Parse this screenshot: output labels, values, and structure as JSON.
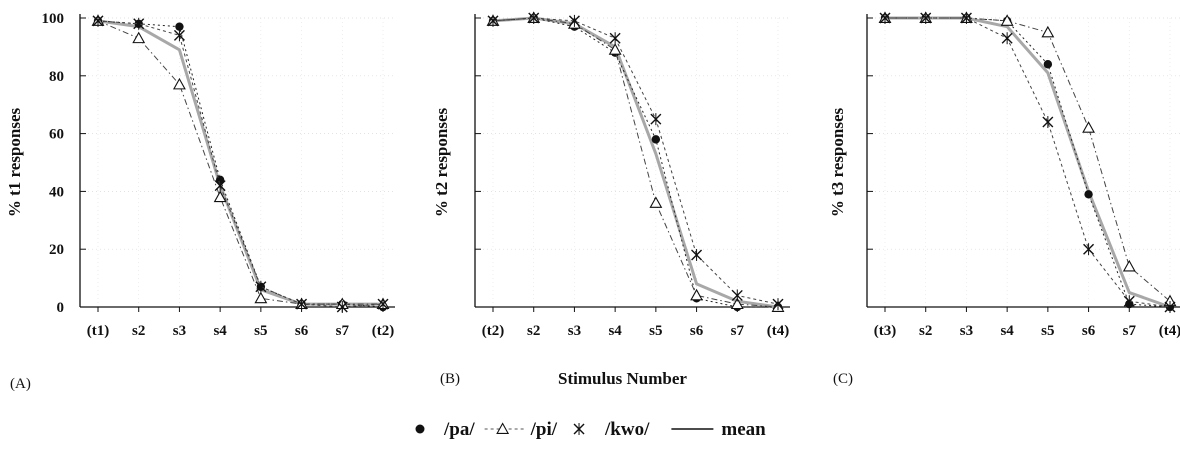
{
  "chart_data": [
    {
      "type": "line",
      "panel_label": "(A)",
      "ylabel": "% t1 responses",
      "xlabel": "",
      "categories": [
        "(t1)",
        "s2",
        "s3",
        "s4",
        "s5",
        "s6",
        "s7",
        "(t2)"
      ],
      "ylim": [
        0,
        100
      ],
      "yticks": [
        "0",
        "20",
        "40",
        "60",
        "80",
        "100"
      ],
      "series": [
        {
          "name": "/pa/",
          "marker": "dot",
          "values": [
            99,
            98,
            97,
            44,
            7,
            1,
            1,
            0
          ]
        },
        {
          "name": "/pi/",
          "marker": "triangle",
          "values": [
            99,
            93,
            77,
            38,
            3,
            1,
            1,
            1
          ]
        },
        {
          "name": "/kwo/",
          "marker": "x",
          "values": [
            99,
            98,
            94,
            42,
            7,
            1,
            0,
            1
          ]
        },
        {
          "name": "mean",
          "marker": "line",
          "values": [
            99,
            97,
            89,
            42,
            6,
            1,
            1,
            1
          ]
        }
      ]
    },
    {
      "type": "line",
      "panel_label": "(B)",
      "ylabel": "% t2 responses",
      "xlabel": "Stimulus Number",
      "categories": [
        "(t2)",
        "s2",
        "s3",
        "s4",
        "s5",
        "s6",
        "s7",
        "(t4)"
      ],
      "ylim": [
        0,
        100
      ],
      "yticks": [],
      "series": [
        {
          "name": "/pa/",
          "marker": "dot",
          "values": [
            99,
            100,
            97,
            88,
            58,
            3,
            0,
            0
          ]
        },
        {
          "name": "/pi/",
          "marker": "triangle",
          "values": [
            99,
            100,
            98,
            89,
            36,
            4,
            1,
            0
          ]
        },
        {
          "name": "/kwo/",
          "marker": "x",
          "values": [
            99,
            100,
            99,
            93,
            65,
            18,
            4,
            1
          ]
        },
        {
          "name": "mean",
          "marker": "line",
          "values": [
            99,
            100,
            98,
            90,
            53,
            8,
            2,
            0
          ]
        }
      ]
    },
    {
      "type": "line",
      "panel_label": "(C)",
      "ylabel": "% t3 responses",
      "xlabel": "",
      "categories": [
        "(t3)",
        "s2",
        "s3",
        "s4",
        "s5",
        "s6",
        "s7",
        "(t4)"
      ],
      "ylim": [
        0,
        100
      ],
      "yticks": [],
      "series": [
        {
          "name": "/pa/",
          "marker": "dot",
          "values": [
            100,
            100,
            100,
            99,
            84,
            39,
            1,
            0
          ]
        },
        {
          "name": "/pi/",
          "marker": "triangle",
          "values": [
            100,
            100,
            100,
            99,
            95,
            62,
            14,
            2
          ]
        },
        {
          "name": "/kwo/",
          "marker": "x",
          "values": [
            100,
            100,
            100,
            93,
            64,
            20,
            2,
            0
          ]
        },
        {
          "name": "mean",
          "marker": "line",
          "values": [
            100,
            100,
            100,
            97,
            81,
            40,
            5,
            0
          ]
        }
      ]
    }
  ],
  "legend": [
    {
      "marker": "dot",
      "label": "/pa/"
    },
    {
      "marker": "triangle",
      "label": "/pi/"
    },
    {
      "marker": "x",
      "label": "/kwo/"
    },
    {
      "marker": "line",
      "label": "mean"
    }
  ]
}
